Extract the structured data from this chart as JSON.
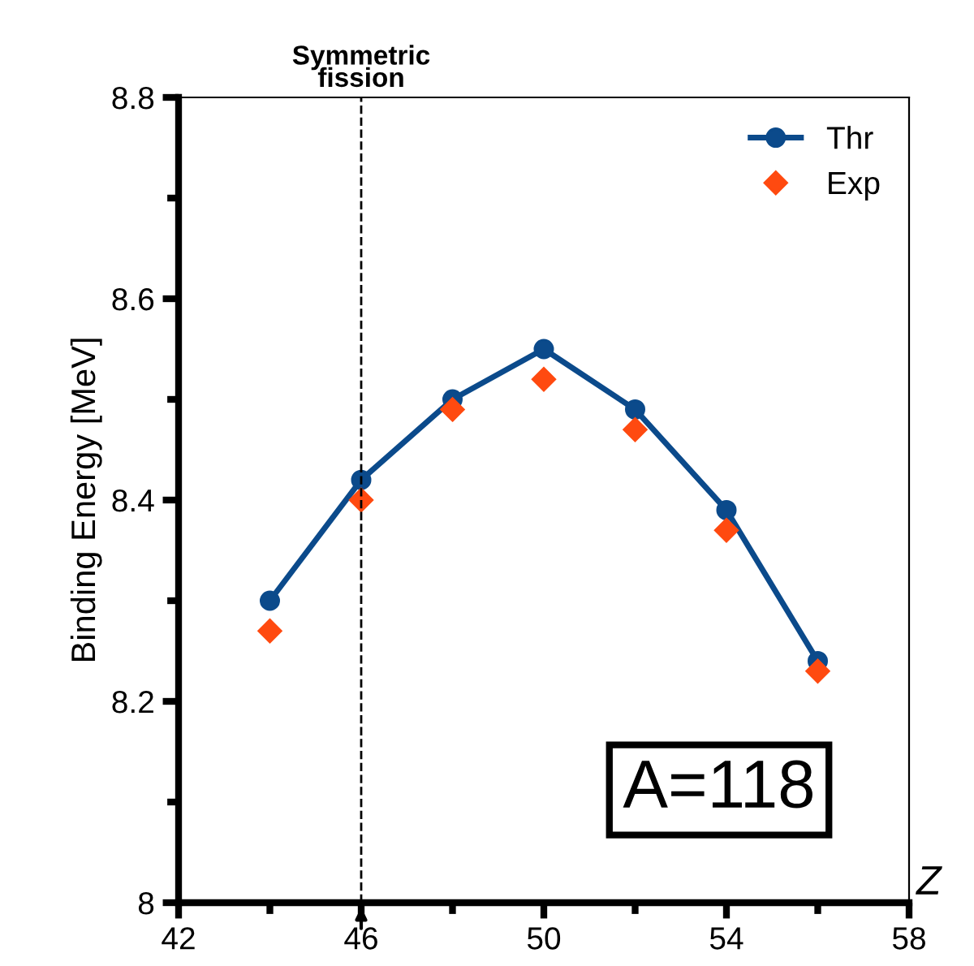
{
  "chart_data": {
    "type": "line",
    "xlabel": "Z",
    "ylabel": "Binding Energy [MeV]",
    "x": [
      44,
      46,
      48,
      50,
      52,
      54,
      56
    ],
    "series": [
      {
        "name": "Thr",
        "color": "#0b4a8b",
        "marker": "circle",
        "values": [
          8.3,
          8.42,
          8.5,
          8.55,
          8.49,
          8.39,
          8.24
        ]
      },
      {
        "name": "Exp",
        "type": "scatter",
        "color": "#ff4a10",
        "marker": "diamond",
        "values": [
          8.27,
          8.4,
          8.49,
          8.52,
          8.47,
          8.37,
          8.23
        ]
      }
    ],
    "xlim": [
      42,
      58
    ],
    "xticks": [
      42,
      46,
      50,
      54,
      58
    ],
    "ylim": [
      8,
      8.8
    ],
    "yticks": [
      8,
      8.2,
      8.4,
      8.6,
      8.8
    ],
    "ref_lines": [
      {
        "axis": "x",
        "value": 46,
        "label": "Symmetric\nfission",
        "color": "#000000",
        "line_style": "dashed"
      }
    ],
    "annotations": [
      "A=118"
    ],
    "legend": "top right",
    "grid": false
  }
}
